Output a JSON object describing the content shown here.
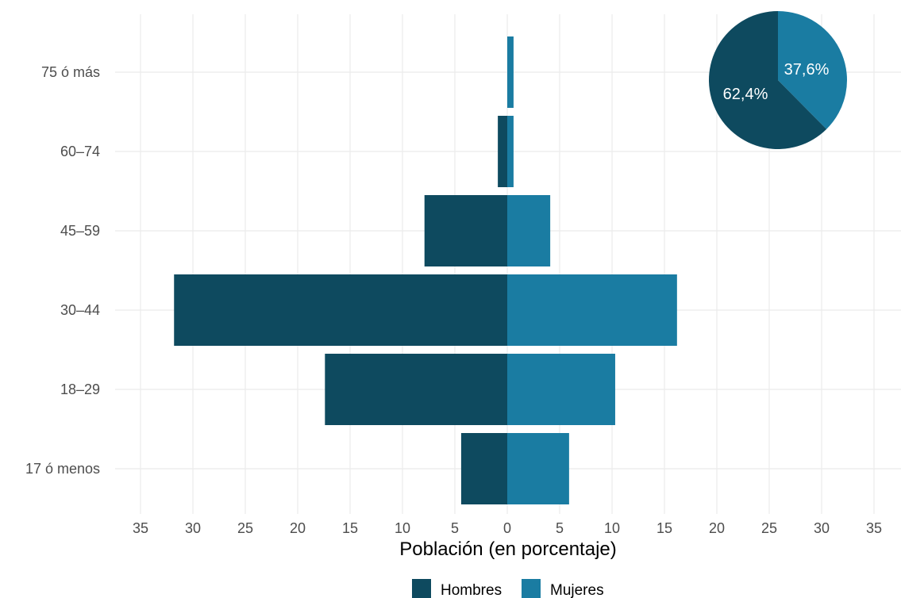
{
  "chart_data": {
    "type": "bar",
    "orientation": "horizontal-diverging",
    "categories": [
      "17 ó menos",
      "18–29",
      "30–44",
      "45–59",
      "60–74",
      "75 ó más"
    ],
    "series": [
      {
        "name": "Hombres",
        "values": [
          4.4,
          17.4,
          31.8,
          7.9,
          0.9,
          0.0
        ],
        "color": "#0e4a5f"
      },
      {
        "name": "Mujeres",
        "values": [
          5.9,
          10.3,
          16.2,
          4.1,
          0.6,
          0.6
        ],
        "color": "#1a7ca2"
      }
    ],
    "xlabel": "Población (en porcentaje)",
    "xlim": [
      -35,
      35
    ],
    "xticks": [
      {
        "value": -35,
        "label": "35"
      },
      {
        "value": -30,
        "label": "30"
      },
      {
        "value": -25,
        "label": "25"
      },
      {
        "value": -20,
        "label": "20"
      },
      {
        "value": -15,
        "label": "15"
      },
      {
        "value": -10,
        "label": "10"
      },
      {
        "value": -5,
        "label": "5"
      },
      {
        "value": 0,
        "label": "0"
      },
      {
        "value": 5,
        "label": "5"
      },
      {
        "value": 10,
        "label": "10"
      },
      {
        "value": 15,
        "label": "15"
      },
      {
        "value": 20,
        "label": "20"
      },
      {
        "value": 25,
        "label": "25"
      },
      {
        "value": 30,
        "label": "30"
      },
      {
        "value": 35,
        "label": "35"
      }
    ],
    "grid": true,
    "legend_position": "bottom",
    "inset_pie": {
      "type": "pie",
      "slices": [
        {
          "name": "Hombres",
          "value": 62.4,
          "label": "62,4%",
          "color": "#0e4a5f"
        },
        {
          "name": "Mujeres",
          "value": 37.6,
          "label": "37,6%",
          "color": "#1a7ca2"
        }
      ]
    }
  }
}
